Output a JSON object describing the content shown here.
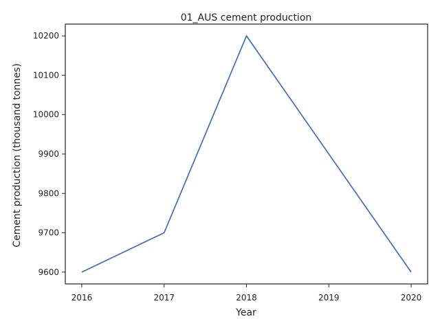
{
  "chart_data": {
    "type": "line",
    "title": "01_AUS cement production",
    "xlabel": "Year",
    "ylabel": "Cement production (thousand tonnes)",
    "x": [
      2016,
      2017,
      2018,
      2019,
      2020
    ],
    "series": [
      {
        "values": [
          9600,
          9700,
          10200,
          9900,
          9600
        ]
      }
    ],
    "xlim": [
      2015.8,
      2020.2
    ],
    "ylim": [
      9570,
      10230
    ],
    "xticks": [
      2016,
      2017,
      2018,
      2019,
      2020
    ],
    "yticks": [
      9600,
      9700,
      9800,
      9900,
      10000,
      10100,
      10200
    ],
    "grid": false,
    "line_color": "#4c72b0"
  }
}
